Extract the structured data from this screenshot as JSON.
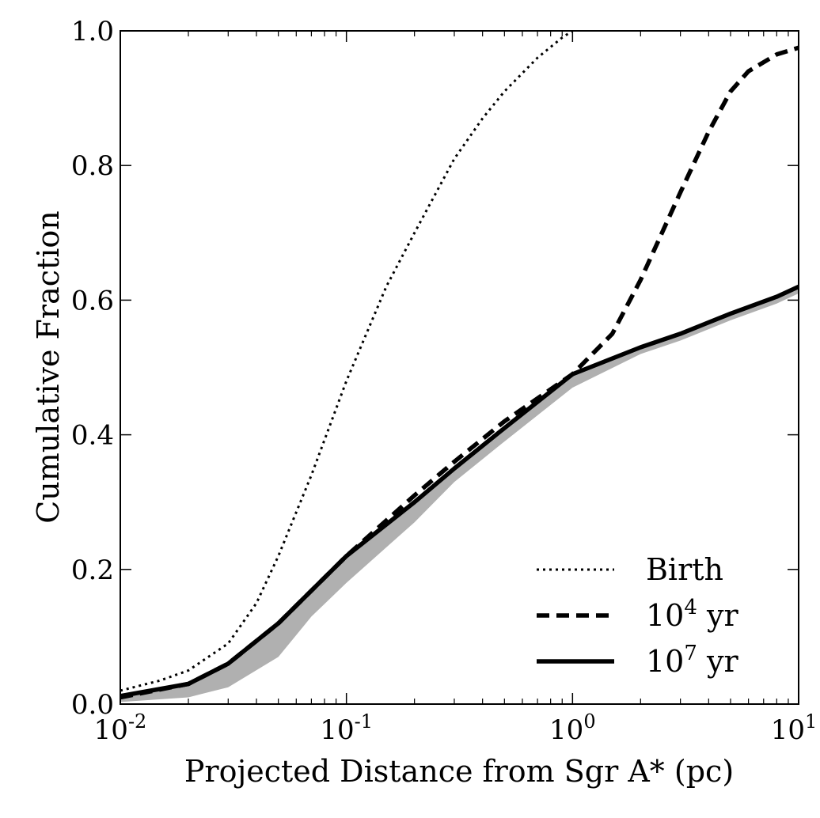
{
  "chart_data": {
    "type": "line",
    "xlabel": "Projected Distance from Sgr A* (pc)",
    "ylabel": "Cumulative Fraction",
    "xscale": "log",
    "xlim": [
      0.01,
      10
    ],
    "ylim": [
      0.0,
      1.0
    ],
    "x_ticks": [
      {
        "value": 0.01,
        "base": "10",
        "exp": "-2"
      },
      {
        "value": 0.1,
        "base": "10",
        "exp": "-1"
      },
      {
        "value": 1,
        "base": "10",
        "exp": "0"
      },
      {
        "value": 10,
        "base": "10",
        "exp": "1"
      }
    ],
    "y_ticks": [
      {
        "value": 0.0,
        "label": "0.0"
      },
      {
        "value": 0.2,
        "label": "0.2"
      },
      {
        "value": 0.4,
        "label": "0.4"
      },
      {
        "value": 0.6,
        "label": "0.6"
      },
      {
        "value": 0.8,
        "label": "0.8"
      },
      {
        "value": 1.0,
        "label": "1.0"
      }
    ],
    "grid": false,
    "legend_position": "bottom-right",
    "series": [
      {
        "name": "Birth",
        "style": "dotted",
        "color": "#000000",
        "x": [
          0.01,
          0.015,
          0.02,
          0.03,
          0.04,
          0.05,
          0.07,
          0.1,
          0.15,
          0.2,
          0.3,
          0.4,
          0.5,
          0.7,
          0.9,
          1.0
        ],
        "y": [
          0.02,
          0.035,
          0.05,
          0.09,
          0.15,
          0.22,
          0.34,
          0.48,
          0.62,
          0.7,
          0.81,
          0.87,
          0.91,
          0.96,
          0.99,
          1.0
        ]
      },
      {
        "name_base": "10",
        "name_exp": "4",
        "name_unit": " yr",
        "style": "dashed",
        "color": "#000000",
        "x": [
          0.01,
          0.02,
          0.03,
          0.05,
          0.1,
          0.2,
          0.3,
          0.5,
          1.0,
          1.5,
          2.0,
          3.0,
          4.0,
          5.0,
          6.0,
          8.0,
          10.0
        ],
        "y": [
          0.01,
          0.03,
          0.06,
          0.12,
          0.22,
          0.31,
          0.36,
          0.42,
          0.49,
          0.55,
          0.63,
          0.76,
          0.85,
          0.91,
          0.94,
          0.965,
          0.975
        ]
      },
      {
        "name_base": "10",
        "name_exp": "7",
        "name_unit": " yr",
        "style": "solid",
        "color": "#000000",
        "x": [
          0.01,
          0.02,
          0.03,
          0.05,
          0.1,
          0.2,
          0.3,
          0.5,
          1.0,
          2.0,
          3.0,
          5.0,
          8.0,
          10.0
        ],
        "y": [
          0.012,
          0.03,
          0.06,
          0.12,
          0.22,
          0.3,
          0.35,
          0.41,
          0.49,
          0.53,
          0.55,
          0.58,
          0.605,
          0.62
        ]
      }
    ],
    "band": {
      "color": "#b0b0b0",
      "x": [
        0.01,
        0.02,
        0.03,
        0.05,
        0.07,
        0.1,
        0.2,
        0.3,
        0.5,
        1.0,
        2.0,
        3.0,
        5.0,
        8.0,
        10.0
      ],
      "y_low": [
        0.003,
        0.01,
        0.025,
        0.07,
        0.13,
        0.18,
        0.27,
        0.33,
        0.39,
        0.47,
        0.52,
        0.54,
        0.57,
        0.595,
        0.61
      ],
      "y_high": [
        0.012,
        0.03,
        0.06,
        0.12,
        0.17,
        0.22,
        0.3,
        0.35,
        0.41,
        0.49,
        0.53,
        0.55,
        0.58,
        0.605,
        0.62
      ]
    }
  }
}
